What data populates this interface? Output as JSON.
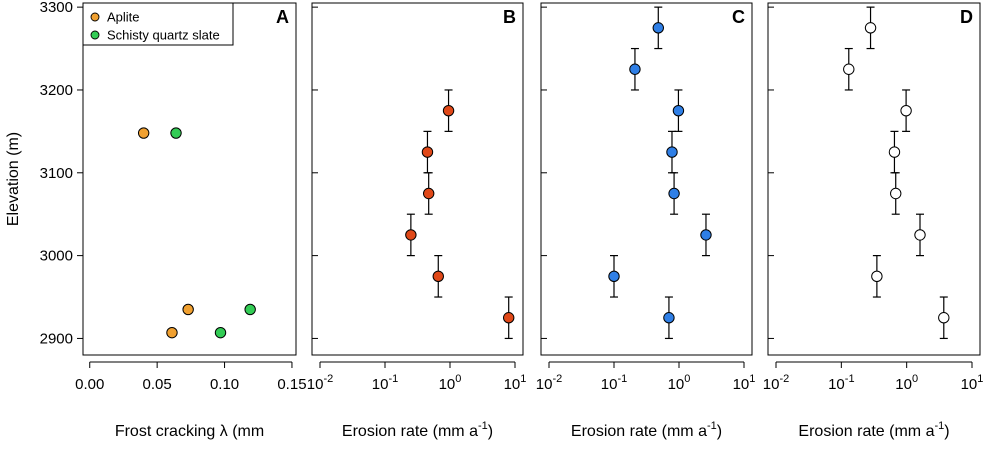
{
  "chart_data": {
    "type": "scatter",
    "ylabel": "Elevation (m)",
    "ylim": [
      2880,
      3305
    ],
    "yticks": [
      2900,
      3000,
      3100,
      3200,
      3300
    ],
    "yticklabels": [
      "2900",
      "3000",
      "3100",
      "3200",
      "3300"
    ],
    "panels": [
      {
        "id": "A",
        "label": "A",
        "xscale": "linear",
        "xlim": [
          -0.005,
          0.153
        ],
        "xticks": [
          0.0,
          0.05,
          0.1,
          0.15
        ],
        "xticklabels": [
          "0.00",
          "0.05",
          "0.10",
          "0.15"
        ],
        "xlabel": "Frost cracking λ (mm",
        "legend_position": "top-left",
        "series": [
          {
            "name": "Aplite",
            "color": "#f0a030",
            "points": [
              {
                "x": 0.04,
                "y": 3148
              },
              {
                "x": 0.073,
                "y": 2935
              },
              {
                "x": 0.061,
                "y": 2907
              }
            ]
          },
          {
            "name": "Schisty quartz slate",
            "color": "#33cc55",
            "points": [
              {
                "x": 0.064,
                "y": 3148
              },
              {
                "x": 0.119,
                "y": 2935
              },
              {
                "x": 0.097,
                "y": 2907
              }
            ]
          }
        ]
      },
      {
        "id": "B",
        "label": "B",
        "xscale": "log",
        "xlim_log10": [
          -2,
          1
        ],
        "xticks": [
          0.01,
          0.1,
          1,
          10
        ],
        "xtick_base": "10",
        "xtick_exponents": [
          "-2",
          "-1",
          "0",
          "1"
        ],
        "xlabel": "Erosion rate (mm a",
        "xlabel_sup": "-1",
        "xlabel_end": ")",
        "color": "#e04818",
        "points": [
          {
            "x": 0.95,
            "y": 3175,
            "ylo": 3150,
            "yhi": 3200
          },
          {
            "x": 0.45,
            "y": 3125,
            "ylo": 3100,
            "yhi": 3150
          },
          {
            "x": 0.47,
            "y": 3075,
            "ylo": 3050,
            "yhi": 3100
          },
          {
            "x": 0.25,
            "y": 3025,
            "ylo": 3000,
            "yhi": 3050
          },
          {
            "x": 0.66,
            "y": 2975,
            "ylo": 2950,
            "yhi": 3000
          },
          {
            "x": 8.0,
            "y": 2925,
            "ylo": 2900,
            "yhi": 2950
          }
        ]
      },
      {
        "id": "C",
        "label": "C",
        "xscale": "log",
        "xlim_log10": [
          -2,
          1
        ],
        "xticks": [
          0.01,
          0.1,
          1,
          10
        ],
        "xtick_base": "10",
        "xtick_exponents": [
          "-2",
          "-1",
          "0",
          "1"
        ],
        "xlabel": "Erosion rate (mm a",
        "xlabel_sup": "-1",
        "xlabel_end": ")",
        "color": "#2f7fe6",
        "points": [
          {
            "x": 0.48,
            "y": 3275,
            "ylo": 3250,
            "yhi": 3300
          },
          {
            "x": 0.21,
            "y": 3225,
            "ylo": 3200,
            "yhi": 3250
          },
          {
            "x": 0.98,
            "y": 3175,
            "ylo": 3150,
            "yhi": 3200
          },
          {
            "x": 0.78,
            "y": 3125,
            "ylo": 3100,
            "yhi": 3150
          },
          {
            "x": 0.84,
            "y": 3075,
            "ylo": 3050,
            "yhi": 3100
          },
          {
            "x": 2.6,
            "y": 3025,
            "ylo": 3000,
            "yhi": 3050
          },
          {
            "x": 0.1,
            "y": 2975,
            "ylo": 2950,
            "yhi": 3000
          },
          {
            "x": 0.7,
            "y": 2925,
            "ylo": 2900,
            "yhi": 2950
          }
        ]
      },
      {
        "id": "D",
        "label": "D",
        "xscale": "log",
        "xlim_log10": [
          -2,
          1
        ],
        "xticks": [
          0.01,
          0.1,
          1,
          10
        ],
        "xtick_base": "10",
        "xtick_exponents": [
          "-2",
          "-1",
          "0",
          "1"
        ],
        "xlabel": "Erosion rate (mm a",
        "xlabel_sup": "-1",
        "xlabel_end": ")",
        "color": "#ffffff",
        "points": [
          {
            "x": 0.28,
            "y": 3275,
            "ylo": 3250,
            "yhi": 3300
          },
          {
            "x": 0.13,
            "y": 3225,
            "ylo": 3200,
            "yhi": 3250
          },
          {
            "x": 0.98,
            "y": 3175,
            "ylo": 3150,
            "yhi": 3200
          },
          {
            "x": 0.65,
            "y": 3125,
            "ylo": 3100,
            "yhi": 3150
          },
          {
            "x": 0.68,
            "y": 3075,
            "ylo": 3050,
            "yhi": 3100
          },
          {
            "x": 1.6,
            "y": 3025,
            "ylo": 3000,
            "yhi": 3050
          },
          {
            "x": 0.35,
            "y": 2975,
            "ylo": 2950,
            "yhi": 3000
          },
          {
            "x": 3.7,
            "y": 2925,
            "ylo": 2900,
            "yhi": 2950
          }
        ]
      }
    ]
  }
}
